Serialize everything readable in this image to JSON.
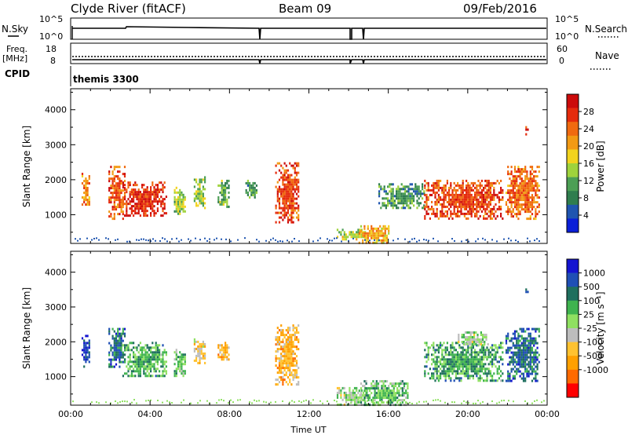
{
  "header": {
    "station": "Clyde River (fitACF)",
    "beam": "Beam 09",
    "date": "09/Feb/2016"
  },
  "panels": {
    "nsky_label": "N.Sky",
    "nsearch_label": "N.Search",
    "nsky_ticks": [
      "10^5",
      "10^0"
    ],
    "nsearch_ticks": [
      "10^5",
      "10^0"
    ],
    "freq_label": "Freq.",
    "freq_unit": "[MHz]",
    "freq_ticks": [
      "18",
      "8"
    ],
    "nave_label": "Nave",
    "nave_ticks": [
      "60",
      "0"
    ],
    "cpid_label": "CPID",
    "cpid_value": "themis 3300"
  },
  "colors": {
    "power": [
      "#0a1fd8",
      "#1f55b0",
      "#2f7d4e",
      "#4c9f55",
      "#9fd33c",
      "#f2d31e",
      "#f29a14",
      "#f06a10",
      "#e52b0c",
      "#cc0b0b"
    ],
    "velocity": [
      "#ff0000",
      "#ff6a00",
      "#ffa000",
      "#ffc230",
      "#bdbdbd",
      "#8fe061",
      "#3fb34f",
      "#1f6f5e",
      "#1f4fb5",
      "#1414d0"
    ]
  },
  "chart_data": [
    {
      "type": "heatmap",
      "name": "power",
      "xlabel": "Time UT",
      "ylabel": "Slant Range [km]",
      "xlim": [
        0,
        24
      ],
      "ylim": [
        180,
        4600
      ],
      "yticks": [
        "1000",
        "2000",
        "3000",
        "4000"
      ],
      "colorbar": {
        "label": "Power [dB]",
        "ticks": [
          "4",
          "8",
          "12",
          "16",
          "20",
          "24",
          "28"
        ],
        "range": [
          0,
          32
        ]
      },
      "regions": [
        {
          "t": [
            0.55,
            0.95
          ],
          "r": [
            1300,
            2200
          ],
          "value": 22
        },
        {
          "t": [
            1.9,
            2.7
          ],
          "r": [
            900,
            2400
          ],
          "value": 25
        },
        {
          "t": [
            2.6,
            4.8
          ],
          "r": [
            950,
            1950
          ],
          "value": 28
        },
        {
          "t": [
            5.2,
            5.8
          ],
          "r": [
            1000,
            1800
          ],
          "value": 14
        },
        {
          "t": [
            6.2,
            6.8
          ],
          "r": [
            1200,
            2100
          ],
          "value": 14
        },
        {
          "t": [
            7.4,
            8.0
          ],
          "r": [
            1200,
            2000
          ],
          "value": 12
        },
        {
          "t": [
            8.8,
            9.4
          ],
          "r": [
            1500,
            2000
          ],
          "value": 10
        },
        {
          "t": [
            10.3,
            11.5
          ],
          "r": [
            800,
            2500
          ],
          "value": 26
        },
        {
          "t": [
            13.4,
            15.0
          ],
          "r": [
            300,
            600
          ],
          "value": 16
        },
        {
          "t": [
            14.5,
            16.0
          ],
          "r": [
            200,
            700
          ],
          "value": 20
        },
        {
          "t": [
            15.5,
            17.8
          ],
          "r": [
            1200,
            1900
          ],
          "value": 10
        },
        {
          "t": [
            17.8,
            21.8
          ],
          "r": [
            900,
            2000
          ],
          "value": 26
        },
        {
          "t": [
            21.9,
            23.6
          ],
          "r": [
            900,
            2400
          ],
          "value": 24
        },
        {
          "t": [
            22.9,
            23.0
          ],
          "r": [
            3300,
            3600
          ],
          "value": 28
        }
      ]
    },
    {
      "type": "heatmap",
      "name": "velocity",
      "xlabel": "Time UT",
      "ylabel": "Slant Range [km]",
      "xlim": [
        0,
        24
      ],
      "ylim": [
        180,
        4600
      ],
      "xticks": [
        "00:00",
        "04:00",
        "08:00",
        "12:00",
        "16:00",
        "20:00",
        "00:00"
      ],
      "yticks": [
        "1000",
        "2000",
        "3000",
        "4000"
      ],
      "colorbar": {
        "label": "Velocity [m s⁻¹]",
        "ticks": [
          "1000",
          "500",
          "100",
          "25",
          "-25",
          "-100",
          "-500",
          "-1000"
        ],
        "range": [
          -1200,
          1200
        ]
      },
      "regions": [
        {
          "t": [
            0.55,
            0.95
          ],
          "r": [
            1300,
            2200
          ],
          "value": 900
        },
        {
          "t": [
            1.9,
            2.7
          ],
          "r": [
            1300,
            2400
          ],
          "value": 700
        },
        {
          "t": [
            2.6,
            4.8
          ],
          "r": [
            1000,
            2000
          ],
          "value": 350
        },
        {
          "t": [
            5.2,
            5.8
          ],
          "r": [
            1000,
            1800
          ],
          "value": 200
        },
        {
          "t": [
            6.2,
            6.8
          ],
          "r": [
            1400,
            2100
          ],
          "value": -250
        },
        {
          "t": [
            7.4,
            8.0
          ],
          "r": [
            1500,
            2000
          ],
          "value": -400
        },
        {
          "t": [
            10.3,
            11.5
          ],
          "r": [
            800,
            2500
          ],
          "value": -450
        },
        {
          "t": [
            13.4,
            15.0
          ],
          "r": [
            200,
            700
          ],
          "value": 60
        },
        {
          "t": [
            14.5,
            17.0
          ],
          "r": [
            200,
            900
          ],
          "value": 250
        },
        {
          "t": [
            17.8,
            21.8
          ],
          "r": [
            900,
            2000
          ],
          "value": 400
        },
        {
          "t": [
            19.5,
            21.0
          ],
          "r": [
            1900,
            2300
          ],
          "value": 10
        },
        {
          "t": [
            21.9,
            23.6
          ],
          "r": [
            900,
            2400
          ],
          "value": 700
        },
        {
          "t": [
            22.9,
            23.0
          ],
          "r": [
            3300,
            3600
          ],
          "value": 900
        }
      ]
    }
  ]
}
